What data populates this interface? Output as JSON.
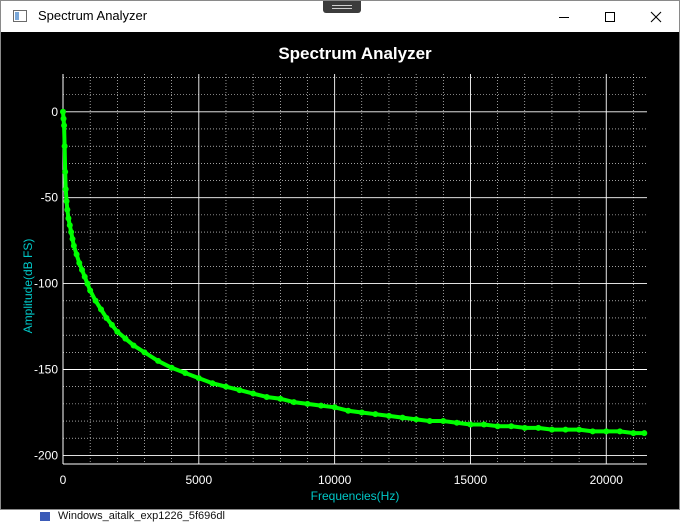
{
  "window": {
    "title": "Spectrum Analyzer",
    "minimize_icon": "minimize-icon",
    "maximize_icon": "maximize-icon",
    "close_icon": "close-icon"
  },
  "taskbar": {
    "item_label": "Windows_aitalk_exp1226_5f696dl"
  },
  "colors": {
    "background": "#000000",
    "grid": "#ffffff",
    "series": "#00ff00",
    "axis_label": "#00c8c8",
    "tick_label": "#ffffff"
  },
  "chart_data": {
    "type": "scatter",
    "title": "Spectrum Analyzer",
    "xlabel": "Frequencies(Hz)",
    "ylabel": "Amplitude(dB FS)",
    "xlim": [
      0,
      21500
    ],
    "ylim": [
      -205,
      22
    ],
    "x_ticks": [
      0,
      5000,
      10000,
      15000,
      20000
    ],
    "y_ticks": [
      0,
      -50,
      -100,
      -150,
      -200
    ],
    "grid": true,
    "series": [
      {
        "color": "#00ff00",
        "x": [
          0,
          20,
          40,
          60,
          80,
          100,
          130,
          160,
          200,
          250,
          300,
          350,
          400,
          500,
          600,
          700,
          800,
          900,
          1000,
          1200,
          1400,
          1600,
          1800,
          2000,
          2300,
          2600,
          3000,
          3500,
          4000,
          4500,
          5000,
          5500,
          6000,
          6500,
          7000,
          7500,
          8000,
          8500,
          9000,
          9500,
          10000,
          10500,
          11000,
          11500,
          12000,
          12500,
          13000,
          13500,
          14000,
          14500,
          15000,
          15500,
          16000,
          16500,
          17000,
          17500,
          18000,
          18500,
          19000,
          19500,
          20000,
          20500,
          21000,
          21400
        ],
        "y": [
          0,
          -4,
          -8,
          -20,
          -35,
          -45,
          -52,
          -57,
          -62,
          -66,
          -70,
          -74,
          -78,
          -83,
          -88,
          -92,
          -96,
          -100,
          -104,
          -110,
          -115,
          -120,
          -124,
          -128,
          -132,
          -136,
          -140,
          -145,
          -149,
          -152,
          -155,
          -158,
          -160,
          -162,
          -164,
          -166,
          -167,
          -169,
          -170,
          -171,
          -172,
          -174,
          -175,
          -176,
          -177,
          -178,
          -179,
          -180,
          -180,
          -181,
          -182,
          -182,
          -183,
          -183,
          -184,
          -184,
          -185,
          -185,
          -185,
          -186,
          -186,
          -186,
          -187,
          -187
        ]
      }
    ]
  }
}
